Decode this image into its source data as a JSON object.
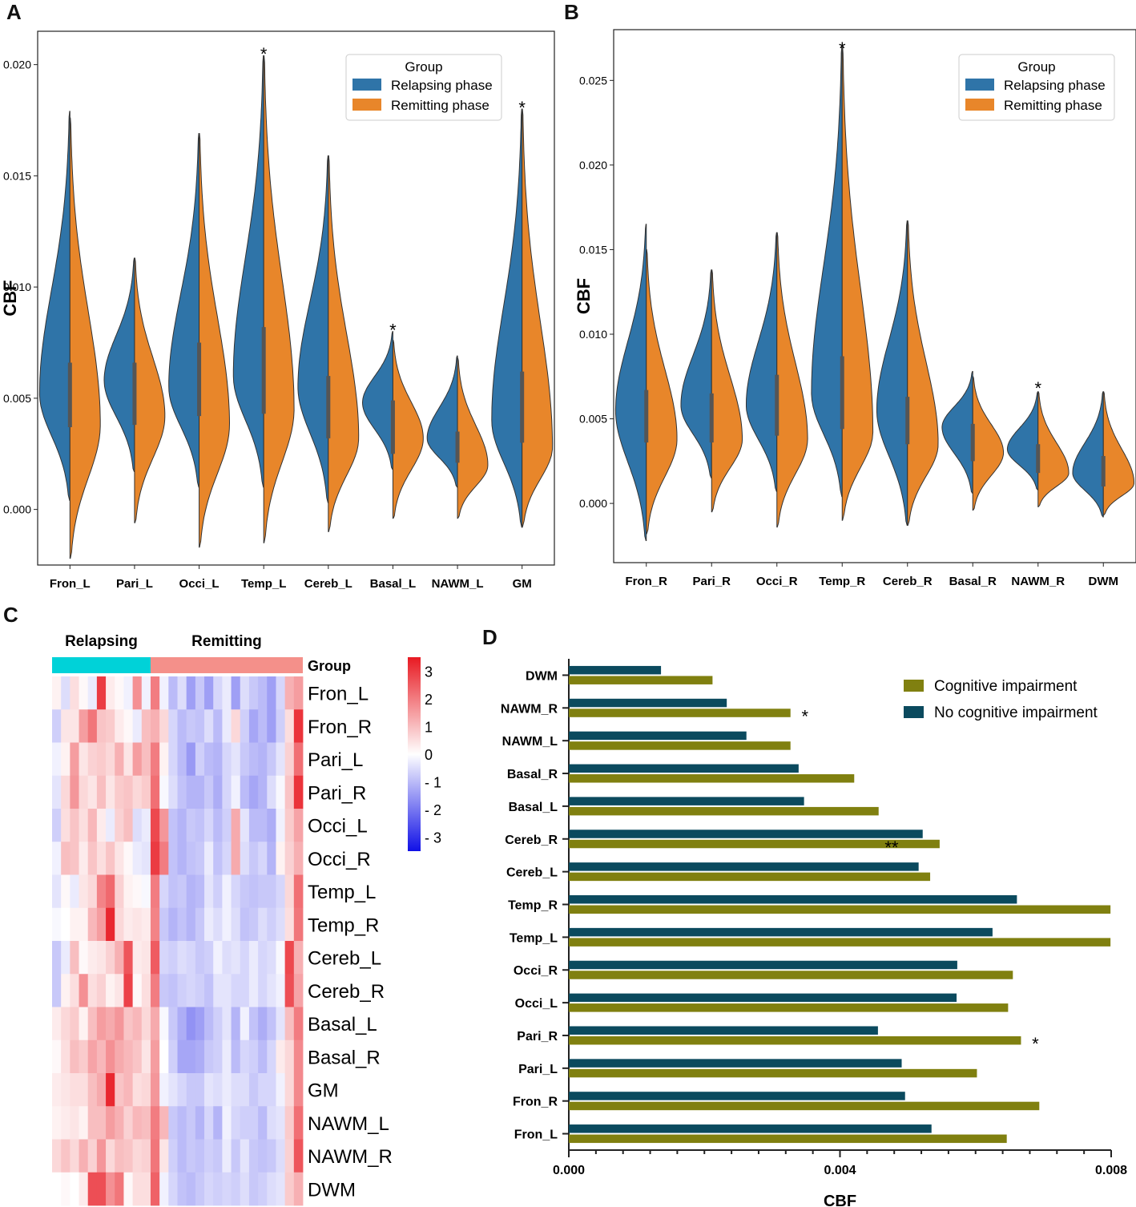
{
  "panel_letters": {
    "a": "A",
    "b": "B",
    "c": "C",
    "d": "D"
  },
  "colors": {
    "relapsing": "#2f74a8",
    "remitting": "#e8862a",
    "cognitive": "#808010",
    "no_cognitive": "#0b4a5e",
    "heat_low": "#1010e6",
    "heat_mid": "#ffffff",
    "heat_high": "#e81a22",
    "relapsing_bar": "#00d2d8",
    "remitting_bar": "#f4908a"
  },
  "chart_data": [
    {
      "panel": "A",
      "type": "violin",
      "ylabel": "CBF",
      "ylim": [
        -0.0025,
        0.0215
      ],
      "yticks": [
        "0.000",
        "0.005",
        "0.010",
        "0.015",
        "0.020"
      ],
      "legend": {
        "title": "Group",
        "entries": [
          "Relapsing phase",
          "Remitting phase"
        ],
        "position": "top-right"
      },
      "categories": [
        "Fron_L",
        "Pari_L",
        "Occi_L",
        "Temp_L",
        "Cereb_L",
        "Basal_L",
        "NAWM_L",
        "GM"
      ],
      "relapsing": [
        {
          "min": 0.0004,
          "max": 0.0179,
          "mode": 0.0052,
          "q1": 0.0037,
          "q3": 0.0066
        },
        {
          "min": 0.0017,
          "max": 0.0113,
          "mode": 0.0058,
          "q1": 0.0038,
          "q3": 0.0066
        },
        {
          "min": 0.001,
          "max": 0.0169,
          "mode": 0.0055,
          "q1": 0.0042,
          "q3": 0.0075
        },
        {
          "min": 0.001,
          "max": 0.0204,
          "mode": 0.006,
          "q1": 0.0043,
          "q3": 0.0082
        },
        {
          "min": 0.0003,
          "max": 0.0159,
          "mode": 0.0055,
          "q1": 0.0032,
          "q3": 0.006
        },
        {
          "min": 0.0018,
          "max": 0.008,
          "mode": 0.0048,
          "q1": 0.0025,
          "q3": 0.0049
        },
        {
          "min": 0.001,
          "max": 0.0069,
          "mode": 0.0032,
          "q1": 0.0021,
          "q3": 0.0035
        },
        {
          "min": -0.0008,
          "max": 0.018,
          "mode": 0.004,
          "q1": 0.003,
          "q3": 0.0062
        }
      ],
      "remitting": [
        {
          "min": -0.0022,
          "max": 0.0176,
          "mode": 0.0038,
          "q1": 0.0037,
          "q3": 0.0066
        },
        {
          "min": -0.0006,
          "max": 0.0113,
          "mode": 0.0042,
          "q1": 0.0038,
          "q3": 0.0066
        },
        {
          "min": -0.0017,
          "max": 0.0169,
          "mode": 0.0038,
          "q1": 0.0042,
          "q3": 0.0075
        },
        {
          "min": -0.0015,
          "max": 0.0204,
          "mode": 0.0045,
          "q1": 0.0043,
          "q3": 0.0082
        },
        {
          "min": -0.001,
          "max": 0.0159,
          "mode": 0.0032,
          "q1": 0.0032,
          "q3": 0.006
        },
        {
          "min": -0.0004,
          "max": 0.0076,
          "mode": 0.0032,
          "q1": 0.0025,
          "q3": 0.0049
        },
        {
          "min": -0.0004,
          "max": 0.0068,
          "mode": 0.002,
          "q1": 0.0021,
          "q3": 0.0035
        },
        {
          "min": -0.0008,
          "max": 0.018,
          "mode": 0.0028,
          "q1": 0.003,
          "q3": 0.0062
        }
      ],
      "annotations": [
        {
          "category": "Temp_L",
          "text": "*",
          "y": 0.0207
        },
        {
          "category": "Basal_L",
          "text": "*",
          "y": 0.0083
        },
        {
          "category": "GM",
          "text": "*",
          "y": 0.0183
        }
      ]
    },
    {
      "panel": "B",
      "type": "violin",
      "ylabel": "CBF",
      "ylim": [
        -0.0035,
        0.028
      ],
      "yticks": [
        "0.000",
        "0.005",
        "0.010",
        "0.015",
        "0.020",
        "0.025"
      ],
      "legend": {
        "title": "Group",
        "entries": [
          "Relapsing phase",
          "Remitting phase"
        ],
        "position": "top-right"
      },
      "categories": [
        "Fron_R",
        "Pari_R",
        "Occi_R",
        "Temp_R",
        "Cereb_R",
        "Basal_R",
        "NAWM_R",
        "DWM"
      ],
      "relapsing": [
        {
          "min": -0.0022,
          "max": 0.0165,
          "mode": 0.0055,
          "q1": 0.0036,
          "q3": 0.0067
        },
        {
          "min": 0.0015,
          "max": 0.0138,
          "mode": 0.0058,
          "q1": 0.0036,
          "q3": 0.0065
        },
        {
          "min": 0.0007,
          "max": 0.016,
          "mode": 0.0058,
          "q1": 0.004,
          "q3": 0.0076
        },
        {
          "min": 0.0004,
          "max": 0.027,
          "mode": 0.0065,
          "q1": 0.0044,
          "q3": 0.0087
        },
        {
          "min": -0.0013,
          "max": 0.0167,
          "mode": 0.0055,
          "q1": 0.0035,
          "q3": 0.0063
        },
        {
          "min": 0.0006,
          "max": 0.0078,
          "mode": 0.0045,
          "q1": 0.0025,
          "q3": 0.0047
        },
        {
          "min": 0.0008,
          "max": 0.0066,
          "mode": 0.0032,
          "q1": 0.0018,
          "q3": 0.0035
        },
        {
          "min": -0.0008,
          "max": 0.0066,
          "mode": 0.0018,
          "q1": 0.001,
          "q3": 0.0028
        }
      ],
      "remitting": [
        {
          "min": -0.0018,
          "max": 0.015,
          "mode": 0.0038,
          "q1": 0.0036,
          "q3": 0.0067
        },
        {
          "min": -0.0005,
          "max": 0.0138,
          "mode": 0.0038,
          "q1": 0.0036,
          "q3": 0.0065
        },
        {
          "min": -0.0014,
          "max": 0.016,
          "mode": 0.0038,
          "q1": 0.004,
          "q3": 0.0076
        },
        {
          "min": -0.001,
          "max": 0.027,
          "mode": 0.0042,
          "q1": 0.0044,
          "q3": 0.0087
        },
        {
          "min": -0.0013,
          "max": 0.0167,
          "mode": 0.0035,
          "q1": 0.0035,
          "q3": 0.0063
        },
        {
          "min": -0.0004,
          "max": 0.0075,
          "mode": 0.003,
          "q1": 0.0025,
          "q3": 0.0047
        },
        {
          "min": -0.0002,
          "max": 0.0066,
          "mode": 0.0018,
          "q1": 0.0018,
          "q3": 0.0035
        },
        {
          "min": -0.0007,
          "max": 0.0066,
          "mode": 0.0012,
          "q1": 0.001,
          "q3": 0.0028
        }
      ],
      "annotations": [
        {
          "category": "Temp_R",
          "text": "*",
          "y": 0.0272
        },
        {
          "category": "NAWM_R",
          "text": "*",
          "y": 0.0071
        }
      ]
    },
    {
      "panel": "C",
      "type": "heatmap",
      "column_groups": [
        {
          "name": "Relapsing",
          "count": 11
        },
        {
          "name": "Remitting",
          "count": 17
        }
      ],
      "annotation_row_label": "Group",
      "rows": [
        "Fron_L",
        "Fron_R",
        "Pari_L",
        "Pari_R",
        "Occi_L",
        "Occi_R",
        "Temp_L",
        "Temp_R",
        "Cereb_L",
        "Cereb_R",
        "Basal_L",
        "Basal_R",
        "GM",
        "NAWM_L",
        "NAWM_R",
        "DWM"
      ],
      "colorbar": {
        "min": -3.5,
        "max": 3.5,
        "ticks": [
          3,
          2,
          1,
          0,
          -1,
          -2,
          -3
        ],
        "tick_labels": [
          "3",
          "2",
          "1",
          "0",
          "- 1",
          "- 2",
          "- 3"
        ]
      },
      "values": [
        [
          0.2,
          -0.5,
          0.5,
          0.1,
          -0.3,
          3.0,
          0.3,
          0.1,
          -0.2,
          1.7,
          -0.2,
          2.0,
          -0.2,
          -1.0,
          -0.5,
          -1.4,
          -0.8,
          -1.4,
          -0.6,
          -0.3,
          -1.4,
          -0.5,
          -0.8,
          -1.0,
          -1.4,
          -0.6,
          1.2,
          1.5
        ],
        [
          -0.7,
          0.4,
          0.4,
          1.5,
          2.1,
          0.9,
          0.8,
          0.3,
          0.1,
          -0.3,
          1.0,
          1.2,
          0.6,
          -0.6,
          -1.0,
          -0.8,
          -0.9,
          -0.5,
          -1.0,
          -0.3,
          0.6,
          -0.7,
          -1.3,
          -1.0,
          -1.4,
          -0.7,
          0.5,
          3.1
        ],
        [
          -0.2,
          0.2,
          1.5,
          0.4,
          0.7,
          0.8,
          0.6,
          1.2,
          0.4,
          1.5,
          1.0,
          2.0,
          0.2,
          -0.6,
          -1.0,
          -1.5,
          -0.7,
          -1.0,
          -1.1,
          -0.6,
          -0.4,
          -0.8,
          -1.0,
          -1.1,
          -0.8,
          -0.4,
          0.7,
          2.2
        ],
        [
          -0.4,
          0.6,
          1.6,
          0.6,
          0.4,
          1.0,
          0.4,
          0.8,
          0.9,
          0.6,
          0.8,
          2.2,
          -0.1,
          -0.5,
          -0.9,
          -1.1,
          -1.1,
          -0.8,
          -1.2,
          -0.6,
          -0.2,
          -1.0,
          -1.3,
          -1.1,
          -0.5,
          -0.1,
          0.9,
          3.1
        ],
        [
          -0.7,
          0.5,
          0.9,
          0.5,
          1.1,
          0.3,
          -0.3,
          0.7,
          1.0,
          -0.5,
          -0.3,
          2.8,
          1.6,
          -0.9,
          -1.1,
          -0.8,
          -0.9,
          -0.6,
          -1.0,
          -0.7,
          1.3,
          -0.4,
          -1.0,
          -1.0,
          -1.2,
          -0.2,
          0.8,
          1.4
        ],
        [
          -0.2,
          1.0,
          0.9,
          0.3,
          0.9,
          0.5,
          0.9,
          0.4,
          0.1,
          -0.3,
          -0.4,
          3.0,
          2.0,
          -0.9,
          -1.1,
          -0.9,
          -0.8,
          -0.3,
          -0.9,
          -0.6,
          1.3,
          -0.5,
          -0.8,
          -0.6,
          -1.1,
          0.2,
          0.7,
          1.2
        ],
        [
          -0.4,
          0.1,
          -0.3,
          0.4,
          0.6,
          1.9,
          2.3,
          0.7,
          0.2,
          0.1,
          -0.1,
          2.0,
          -0.6,
          -0.9,
          -0.8,
          -1.1,
          -1.0,
          -0.4,
          -0.7,
          -0.2,
          -0.6,
          -0.8,
          -0.9,
          -0.8,
          -0.8,
          -0.6,
          0.6,
          2.2
        ],
        [
          -0.1,
          0.0,
          0.2,
          0.2,
          1.1,
          1.5,
          3.3,
          0.6,
          0.3,
          0.4,
          0.3,
          1.9,
          -0.8,
          -1.1,
          -0.9,
          -1.1,
          -0.8,
          -0.3,
          -0.5,
          -0.2,
          -0.5,
          -0.9,
          -0.8,
          -0.5,
          -0.7,
          -0.5,
          0.5,
          2.1
        ],
        [
          -0.8,
          -0.3,
          1.0,
          0.1,
          0.3,
          0.4,
          0.7,
          1.2,
          2.6,
          0.3,
          0.4,
          2.5,
          -0.6,
          -0.7,
          -0.5,
          -0.6,
          -0.8,
          -0.7,
          -0.2,
          -0.5,
          -0.4,
          -0.6,
          -0.3,
          -0.6,
          -0.5,
          -0.1,
          2.8,
          1.2
        ],
        [
          -0.8,
          0.2,
          0.5,
          1.7,
          0.5,
          0.7,
          0.2,
          0.4,
          2.9,
          0.1,
          0.5,
          2.0,
          -0.8,
          -0.9,
          -0.7,
          -0.6,
          -0.7,
          -0.9,
          -0.4,
          -0.4,
          -0.6,
          -0.6,
          -0.3,
          -0.6,
          -0.4,
          -0.2,
          2.7,
          1.4
        ],
        [
          0.3,
          0.6,
          0.8,
          0.2,
          1.0,
          1.5,
          1.3,
          1.6,
          0.9,
          1.1,
          0.6,
          1.3,
          -0.1,
          -0.8,
          -1.2,
          -1.6,
          -1.4,
          -1.0,
          -0.7,
          -0.4,
          -1.1,
          -0.2,
          -0.9,
          -1.2,
          -0.9,
          -0.4,
          1.0,
          2.0
        ],
        [
          0.1,
          0.5,
          1.0,
          0.8,
          1.4,
          1.1,
          1.7,
          1.3,
          1.1,
          0.9,
          0.4,
          1.5,
          0.0,
          -0.7,
          -1.3,
          -1.3,
          -1.2,
          -0.8,
          -0.7,
          -0.3,
          -1.0,
          -0.6,
          -0.7,
          -1.0,
          -0.6,
          0.3,
          0.6,
          1.8
        ],
        [
          0.3,
          0.4,
          0.5,
          0.5,
          1.0,
          1.3,
          3.3,
          0.9,
          1.1,
          0.5,
          0.6,
          1.6,
          -0.2,
          -0.4,
          -0.6,
          -0.8,
          -0.8,
          -0.4,
          -0.5,
          -0.3,
          -0.5,
          -0.5,
          -0.8,
          -0.6,
          -0.6,
          -0.2,
          0.6,
          1.8
        ],
        [
          0.2,
          0.3,
          0.4,
          0.2,
          1.0,
          1.0,
          1.5,
          1.2,
          0.7,
          1.1,
          1.0,
          2.0,
          1.1,
          -0.8,
          -1.0,
          -0.8,
          -1.1,
          -0.6,
          -1.1,
          -0.2,
          -0.6,
          -0.7,
          -0.7,
          -1.0,
          -0.5,
          -0.4,
          0.8,
          2.2
        ],
        [
          0.6,
          0.9,
          0.6,
          1.2,
          0.7,
          1.6,
          0.6,
          1.0,
          0.9,
          0.6,
          0.7,
          2.1,
          0.4,
          -0.7,
          -1.0,
          -0.8,
          -0.9,
          -0.7,
          -0.8,
          -0.3,
          -0.8,
          -0.4,
          -0.8,
          -0.9,
          -0.8,
          -0.5,
          0.7,
          2.6
        ],
        [
          0.0,
          0.1,
          0.0,
          0.3,
          2.7,
          2.7,
          1.7,
          2.1,
          0.1,
          0.5,
          0.5,
          2.4,
          -0.2,
          -0.6,
          -0.9,
          -1.0,
          -0.8,
          -0.6,
          -0.7,
          -0.6,
          -0.7,
          -0.5,
          -0.8,
          -0.7,
          -0.5,
          -0.4,
          0.8,
          1.2
        ]
      ]
    },
    {
      "panel": "D",
      "type": "bar",
      "orientation": "horizontal",
      "xlabel": "CBF",
      "xlim": [
        0,
        0.008
      ],
      "xticks": [
        "0.000",
        "0.004",
        "0.008"
      ],
      "legend": {
        "entries": [
          "Cognitive impairment",
          "No cognitive impairment"
        ],
        "position": "top-right"
      },
      "categories": [
        "DWM",
        "NAWM_R",
        "NAWM_L",
        "Basal_R",
        "Basal_L",
        "Cereb_R",
        "Cereb_L",
        "Temp_R",
        "Temp_L",
        "Occi_R",
        "Occi_L",
        "Pari_R",
        "Pari_L",
        "Fron_R",
        "Fron_L"
      ],
      "series": [
        {
          "name": "No cognitive impairment",
          "values": [
            0.00136,
            0.00233,
            0.00262,
            0.00339,
            0.00347,
            0.00522,
            0.00516,
            0.00661,
            0.00625,
            0.00573,
            0.00572,
            0.00456,
            0.00491,
            0.00496,
            0.00535
          ]
        },
        {
          "name": "Cognitive impairment",
          "values": [
            0.00212,
            0.00327,
            0.00327,
            0.00421,
            0.00457,
            0.00547,
            0.00533,
            0.00799,
            0.00799,
            0.00655,
            0.00648,
            0.00667,
            0.00602,
            0.00694,
            0.00646
          ]
        }
      ],
      "annotations": [
        {
          "category": "NAWM_R",
          "text": "*"
        },
        {
          "category": "Cereb_R",
          "text": "**"
        },
        {
          "category": "Pari_R",
          "text": "*"
        }
      ]
    }
  ]
}
